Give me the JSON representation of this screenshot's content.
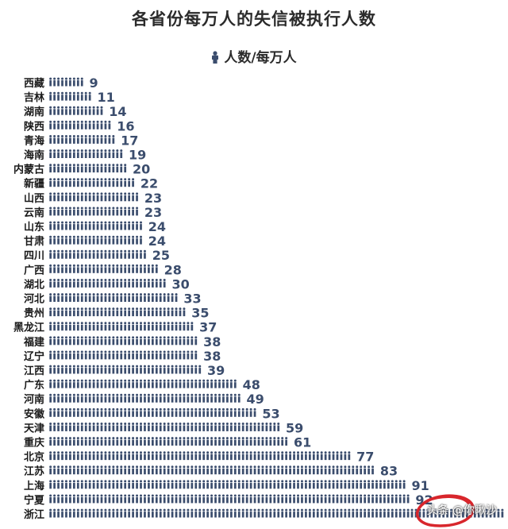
{
  "chart_data": {
    "type": "bar",
    "title": "各省份每万人的失信被执行人数",
    "legend": {
      "label": "人数/每万人",
      "icon": "person-icon",
      "placement": "top-center"
    },
    "categories": [
      "西藏",
      "吉林",
      "湖南",
      "陕西",
      "青海",
      "海南",
      "内蒙古",
      "新疆",
      "山西",
      "云南",
      "山东",
      "甘肃",
      "四川",
      "广西",
      "湖北",
      "河北",
      "贵州",
      "黑龙江",
      "福建",
      "辽宁",
      "江西",
      "广东",
      "河南",
      "安徽",
      "天津",
      "重庆",
      "北京",
      "江苏",
      "上海",
      "宁夏",
      "浙江"
    ],
    "values": [
      9,
      11,
      14,
      16,
      17,
      19,
      20,
      22,
      23,
      23,
      24,
      24,
      25,
      28,
      30,
      33,
      35,
      37,
      38,
      38,
      39,
      48,
      49,
      53,
      59,
      61,
      77,
      83,
      91,
      92,
      null
    ],
    "series_color": "#3b4d6d",
    "grid": false
  },
  "watermark": "头条 @你瞅沙",
  "annotation": {
    "shape": "red-circle",
    "target": "浙江",
    "color": "#d8262c"
  }
}
